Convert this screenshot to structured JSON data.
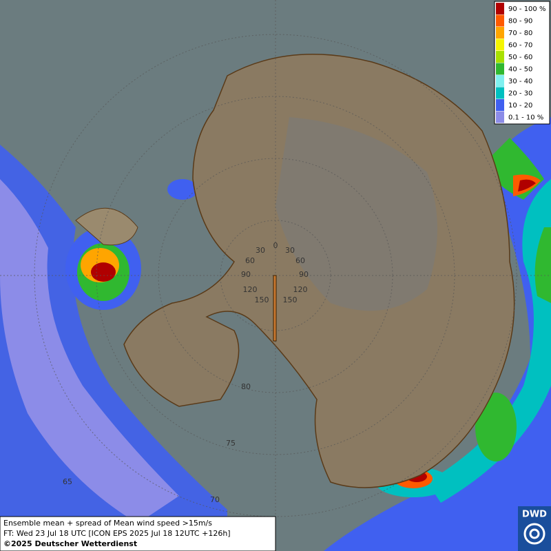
{
  "map": {
    "legend": [
      {
        "label": "90 - 100 %",
        "color": "#b00000"
      },
      {
        "label": "80 - 90",
        "color": "#ff5a00"
      },
      {
        "label": "70 - 80",
        "color": "#ffa500"
      },
      {
        "label": "60 - 70",
        "color": "#f5f500"
      },
      {
        "label": "50 - 60",
        "color": "#a8e000"
      },
      {
        "label": "40 - 50",
        "color": "#30b830"
      },
      {
        "label": "30 - 40",
        "color": "#80f0f0"
      },
      {
        "label": "20 - 30",
        "color": "#00c0c0"
      },
      {
        "label": "10 - 20",
        "color": "#4060f0"
      },
      {
        "label": "0.1 - 10 %",
        "color": "#8c8ce8"
      }
    ],
    "grid_labels": [
      "0",
      "30",
      "30",
      "60",
      "60",
      "90",
      "90",
      "120",
      "120",
      "150",
      "150",
      "80",
      "75",
      "70",
      "65"
    ],
    "footer": {
      "line1": "Ensemble mean + spread of Mean wind speed >15m/s",
      "line2": "FT: Wed 23 Jul 18 UTC [ICON EPS 2025 Jul 18 12UTC +126h]",
      "line3": "©2025 Deutscher Wetterdienst"
    },
    "logo": "DWD"
  }
}
